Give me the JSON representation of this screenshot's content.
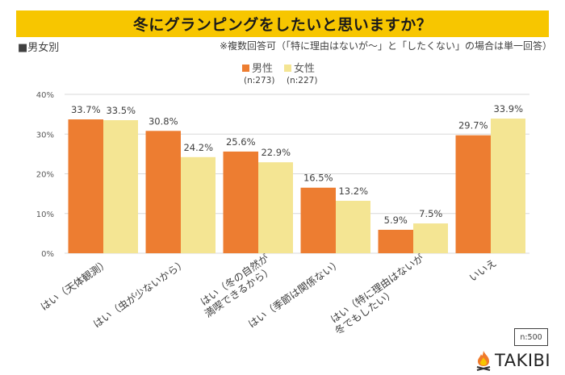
{
  "header": {
    "title": "冬にグランピングをしたいと思いますか？",
    "segment_label": "■男女別",
    "note": "※複数回答可（「特に理由はないが～」と「したくない」の場合は単一回答）"
  },
  "legend": {
    "items": [
      {
        "label": "男性",
        "n": "(n:273)",
        "color": "#ed7d31"
      },
      {
        "label": "女性",
        "n": "(n:227)",
        "color": "#f4e593"
      }
    ]
  },
  "footer": {
    "sample_size": "n:500",
    "logo_text": "TAKIBI"
  },
  "chart_data": {
    "type": "bar",
    "title": "冬にグランピングをしたいと思いますか？",
    "xlabel": "",
    "ylabel": "",
    "ylim": [
      0,
      40
    ],
    "yticks": [
      0,
      10,
      20,
      30,
      40
    ],
    "ytick_labels": [
      "0%",
      "10%",
      "20%",
      "30%",
      "40%"
    ],
    "grid": true,
    "legend_position": "top-center",
    "categories": [
      [
        "はい（天体観測）"
      ],
      [
        "はい（虫が少ないから）"
      ],
      [
        "はい（冬の自然が",
        "満喫できるから）"
      ],
      [
        "はい（季節は関係ない）"
      ],
      [
        "はい（特に理由はないが",
        "冬でもしたい）"
      ],
      [
        "いいえ"
      ]
    ],
    "series": [
      {
        "name": "男性",
        "n": 273,
        "color": "#ed7d31",
        "values": [
          33.7,
          30.8,
          25.6,
          16.5,
          5.9,
          29.7
        ]
      },
      {
        "name": "女性",
        "n": 227,
        "color": "#f4e593",
        "values": [
          33.5,
          24.2,
          22.9,
          13.2,
          7.5,
          33.9
        ]
      }
    ],
    "value_suffix": "%"
  }
}
